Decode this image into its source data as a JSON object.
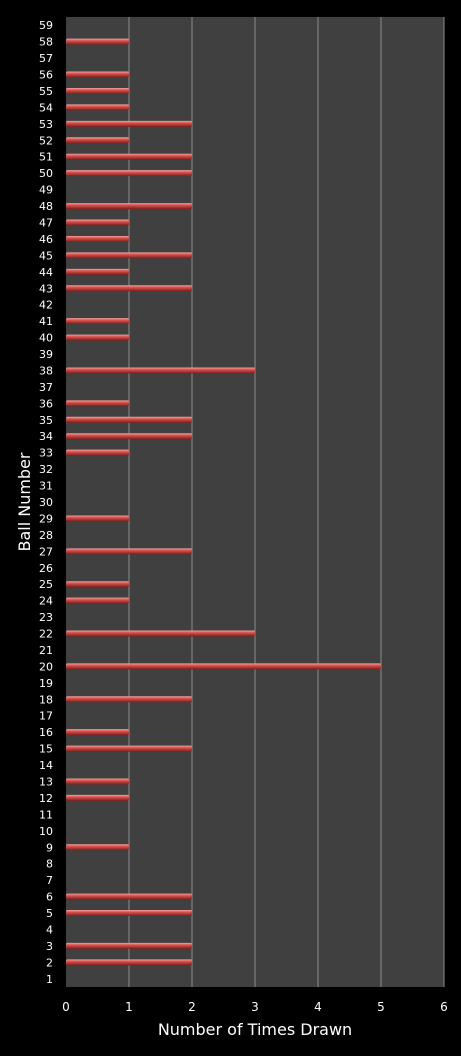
{
  "chart_data": {
    "type": "bar",
    "orientation": "horizontal",
    "title": "",
    "xlabel": "Number of Times Drawn",
    "ylabel": "Ball Number",
    "xlim": [
      0,
      6
    ],
    "x_ticks": [
      0,
      1,
      2,
      3,
      4,
      5,
      6
    ],
    "grid": true,
    "legend": "none",
    "categories": [
      "1",
      "2",
      "3",
      "4",
      "5",
      "6",
      "7",
      "8",
      "9",
      "10",
      "11",
      "12",
      "13",
      "14",
      "15",
      "16",
      "17",
      "18",
      "19",
      "20",
      "21",
      "22",
      "23",
      "24",
      "25",
      "26",
      "27",
      "28",
      "29",
      "30",
      "31",
      "32",
      "33",
      "34",
      "35",
      "36",
      "37",
      "38",
      "39",
      "40",
      "41",
      "42",
      "43",
      "44",
      "45",
      "46",
      "47",
      "48",
      "49",
      "50",
      "51",
      "52",
      "53",
      "54",
      "55",
      "56",
      "57",
      "58",
      "59"
    ],
    "values": [
      0,
      2,
      2,
      0,
      2,
      2,
      0,
      0,
      1,
      0,
      0,
      1,
      1,
      0,
      2,
      1,
      0,
      2,
      0,
      5,
      0,
      3,
      0,
      1,
      1,
      0,
      2,
      0,
      1,
      0,
      0,
      0,
      1,
      2,
      2,
      1,
      0,
      3,
      0,
      1,
      1,
      0,
      2,
      1,
      2,
      1,
      1,
      2,
      0,
      2,
      2,
      1,
      2,
      1,
      1,
      1,
      0,
      1,
      0
    ],
    "colors": {
      "background": "#000000",
      "plot_area": "#404040",
      "gridline": "#8c8c8c",
      "bar": "#d9534f",
      "bar_highlight": "#f5a3a0",
      "bar_shadow": "#7a1e1c",
      "text": "#ffffff"
    }
  }
}
